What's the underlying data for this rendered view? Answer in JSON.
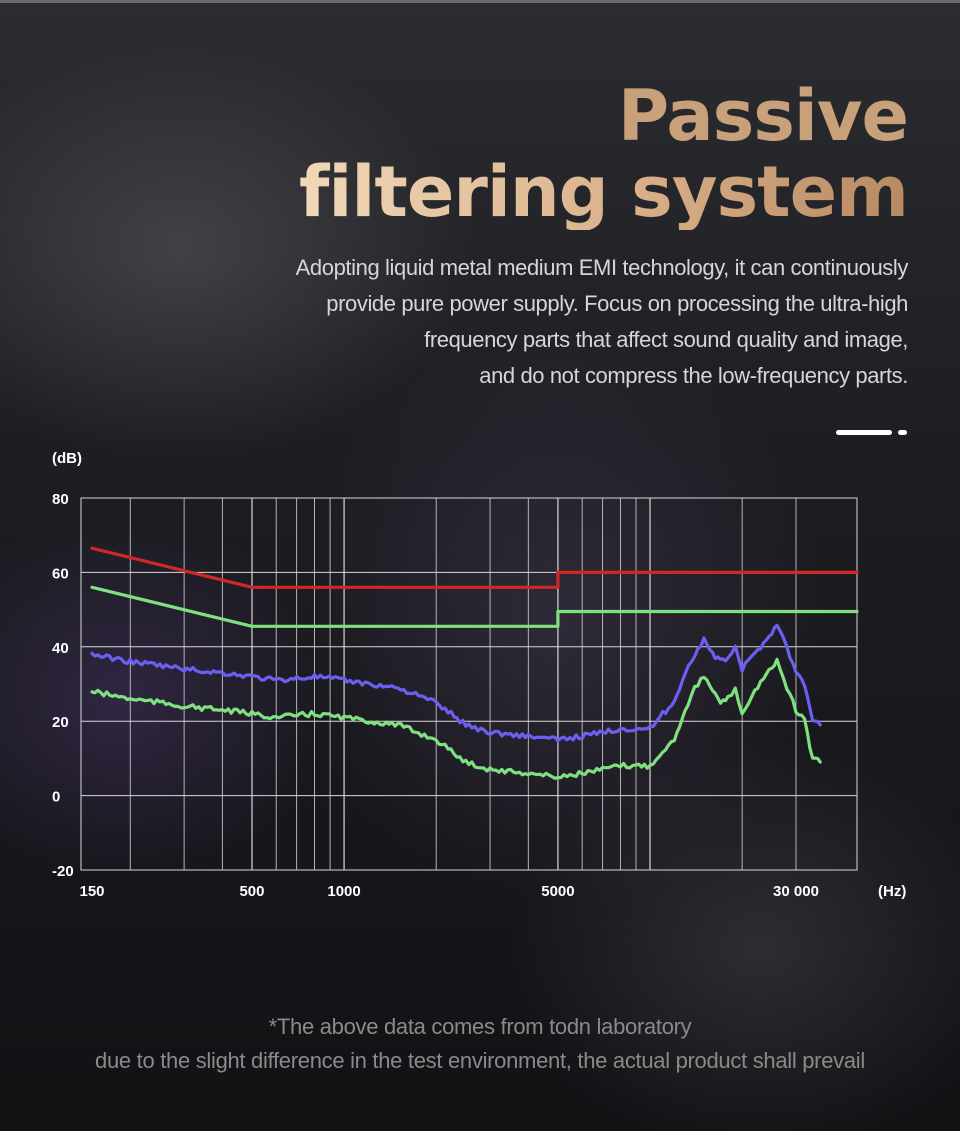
{
  "page": {
    "title_line1": "Passive",
    "title_line2": "filtering system",
    "description": [
      "Adopting liquid metal medium EMI technology, it can continuously",
      "provide pure power supply. Focus on processing the ultra-high",
      "frequency parts that affect sound quality and image,",
      "and do not compress the low-frequency parts."
    ],
    "footnote": [
      "*The above data comes from todn laboratory",
      "due to the slight difference in the test environment, the actual product shall prevail"
    ],
    "icons": [
      "sound-wave-icon",
      "slide-indicator-icon"
    ],
    "colors": {
      "title_gold": "#c8a07a",
      "title_light": "#f0d8b8"
    }
  },
  "chart_data": {
    "type": "line",
    "title": "",
    "ylabel": "(dB)",
    "xlabel": "(Hz)",
    "x_scale": "log",
    "ylim": [
      -20,
      80
    ],
    "yticks": [
      80,
      60,
      40,
      20,
      0,
      -20
    ],
    "xticks": [
      {
        "value": 150,
        "label": "150"
      },
      {
        "value": 500,
        "label": "500"
      },
      {
        "value": 1000,
        "label": "1000"
      },
      {
        "value": 5000,
        "label": "5000"
      },
      {
        "value": 30000,
        "label": "30 000"
      }
    ],
    "grid": true,
    "legend": "none",
    "series": [
      {
        "color": "#d02828",
        "x": [
          150,
          500,
          5000,
          5000,
          30000
        ],
        "y": [
          66.5,
          56,
          56,
          60,
          60
        ]
      },
      {
        "color": "#7ee07e",
        "x": [
          150,
          500,
          5000,
          5000,
          30000
        ],
        "y": [
          56,
          45.5,
          45.5,
          49.5,
          49.5
        ]
      },
      {
        "color": "#6a5ff0",
        "x": [
          150,
          200,
          250,
          300,
          400,
          500,
          600,
          800,
          1000,
          1200,
          1500,
          2000,
          2500,
          3000,
          4000,
          5000,
          6000,
          7000,
          8000,
          9000,
          10000,
          11000,
          12000,
          13000,
          14000,
          15000,
          16000,
          17000,
          18000,
          19000,
          20000,
          22000,
          24000,
          26000,
          28000,
          30000,
          32000,
          34000,
          36000
        ],
        "y": [
          38,
          36,
          35,
          34,
          33,
          32,
          31,
          32,
          31,
          30,
          29,
          25,
          19,
          17,
          16,
          15,
          16,
          17,
          18,
          18,
          18,
          22,
          25,
          33,
          38,
          42,
          38,
          36,
          37,
          40,
          34,
          38,
          42,
          46,
          40,
          33,
          30,
          20,
          19
        ]
      },
      {
        "color": "#7ee07e",
        "x": [
          150,
          200,
          250,
          300,
          400,
          500,
          600,
          800,
          1000,
          1200,
          1500,
          2000,
          2500,
          3000,
          4000,
          5000,
          6000,
          7000,
          8000,
          9000,
          10000,
          11000,
          12000,
          13000,
          14000,
          15000,
          16000,
          17000,
          18000,
          19000,
          20000,
          22000,
          24000,
          26000,
          28000,
          30000,
          32000,
          34000,
          36000
        ],
        "y": [
          28,
          26,
          25,
          24,
          23,
          22,
          21,
          22,
          21,
          20,
          19,
          15,
          9,
          7,
          6,
          5,
          6,
          7,
          8,
          8,
          8,
          12,
          15,
          23,
          29,
          32,
          28,
          25,
          26,
          29,
          22,
          28,
          33,
          36,
          29,
          23,
          20,
          10,
          9
        ]
      }
    ]
  }
}
